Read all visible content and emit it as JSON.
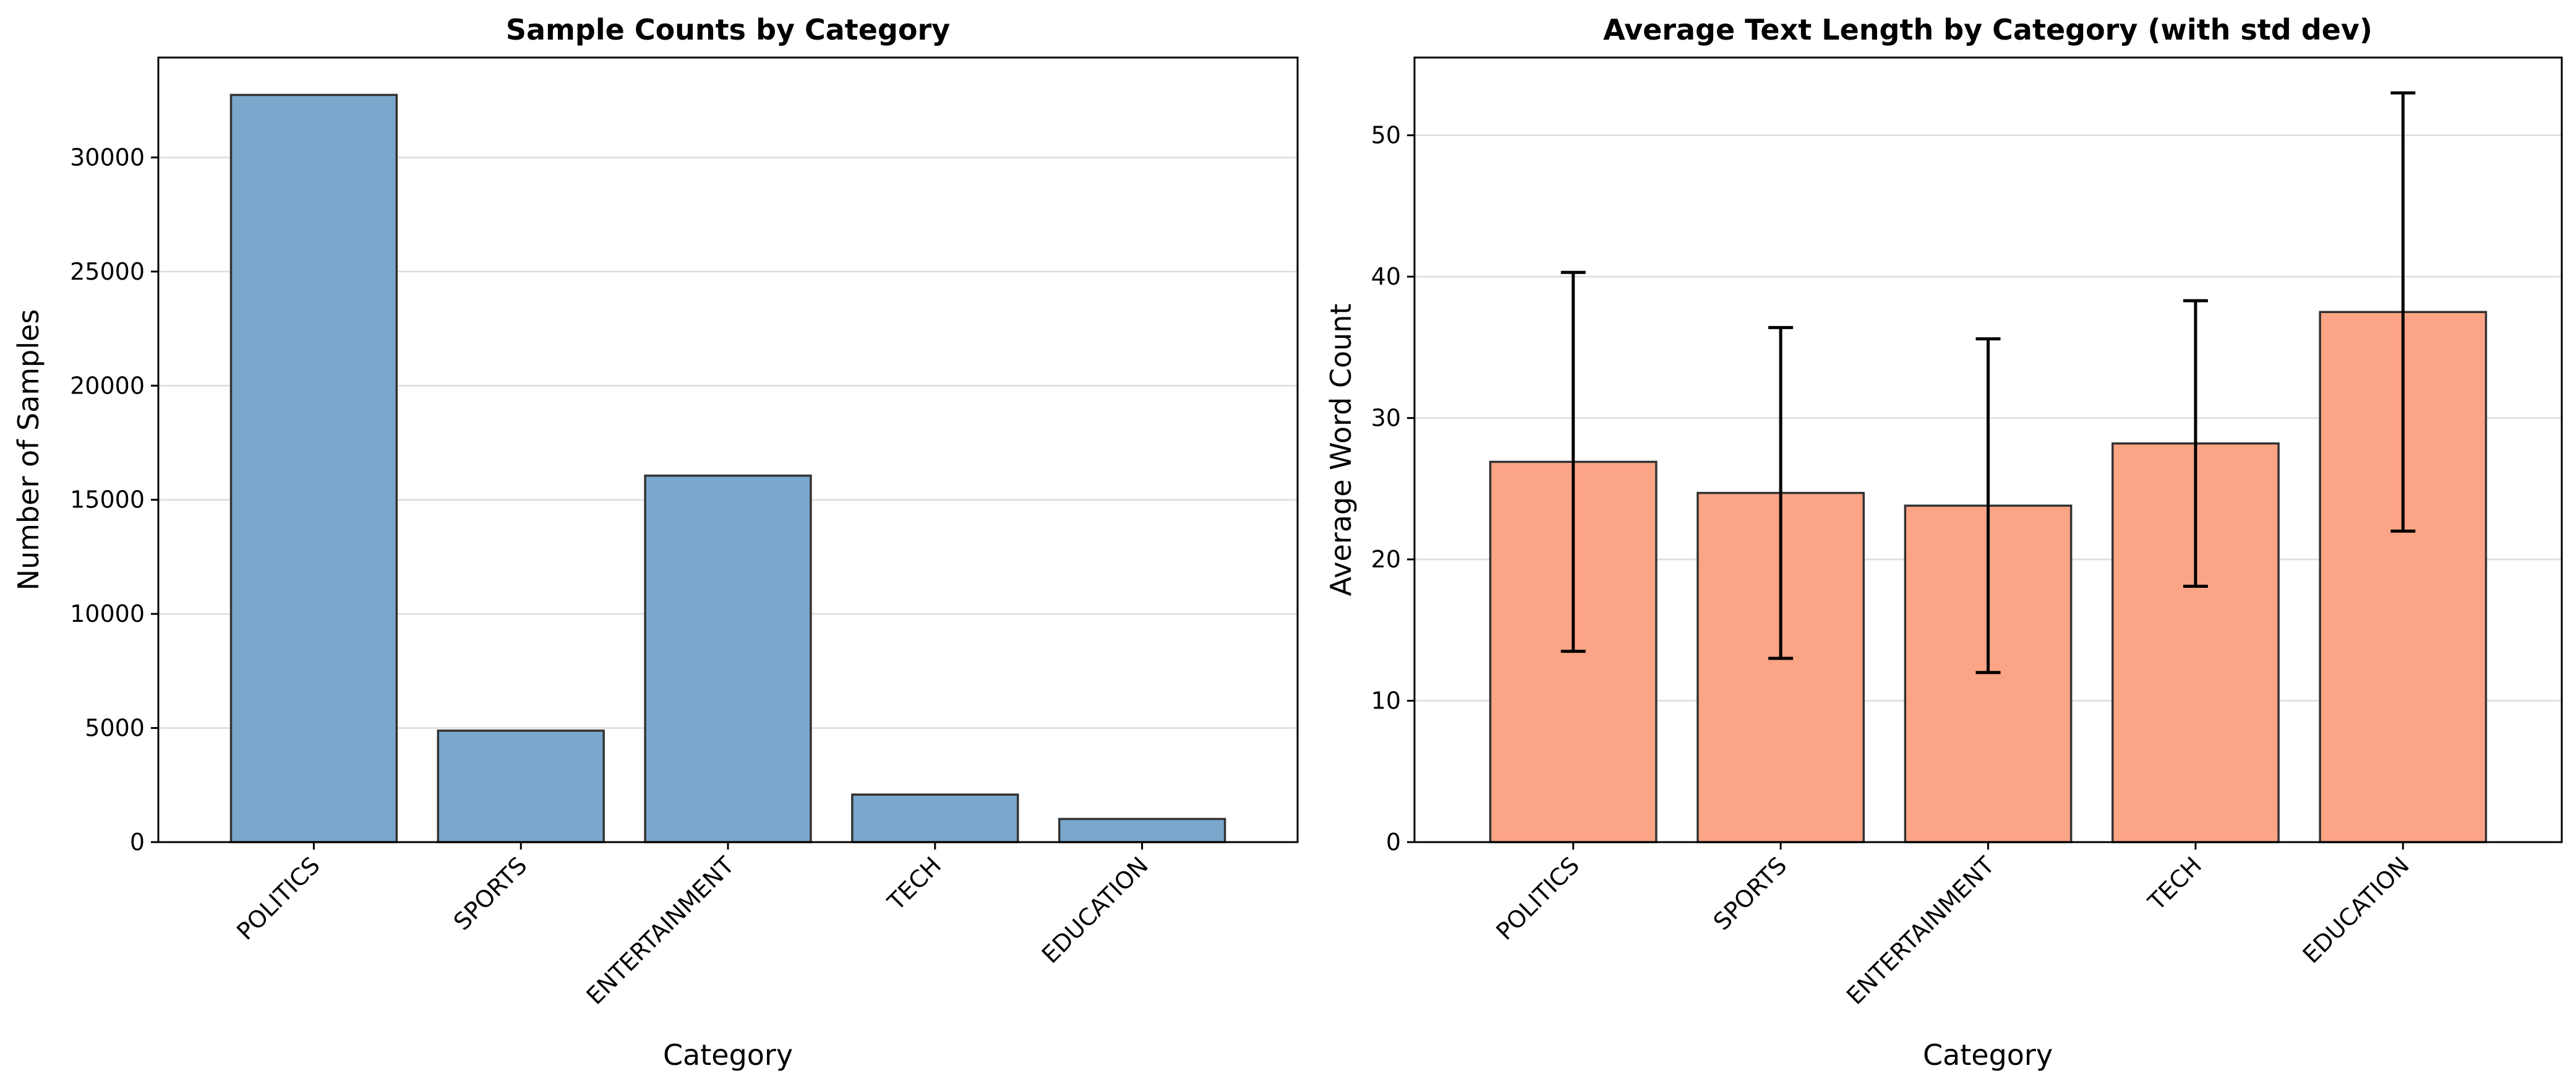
{
  "chart_data": [
    {
      "type": "bar",
      "title": "Sample Counts by Category",
      "xlabel": "Category",
      "ylabel": "Number of Samples",
      "categories": [
        "POLITICS",
        "SPORTS",
        "ENTERTAINMENT",
        "TECH",
        "EDUCATION"
      ],
      "values": [
        32739,
        4884,
        16058,
        2082,
        1014
      ],
      "ylim": [
        0,
        34377
      ],
      "yticks": [
        0,
        5000,
        10000,
        15000,
        20000,
        25000,
        30000
      ],
      "grid": true,
      "bar_color": "#7ba7cc"
    },
    {
      "type": "bar",
      "title": "Average Text Length by Category (with std dev)",
      "xlabel": "Category",
      "ylabel": "Average Word Count",
      "categories": [
        "POLITICS",
        "SPORTS",
        "ENTERTAINMENT",
        "TECH",
        "EDUCATION"
      ],
      "values": [
        26.9,
        24.7,
        23.8,
        28.2,
        37.5
      ],
      "error": [
        13.4,
        11.7,
        11.8,
        10.1,
        15.5
      ],
      "ylim": [
        0,
        55.5
      ],
      "yticks": [
        0,
        10,
        20,
        30,
        40,
        50
      ],
      "grid": true,
      "bar_color": "#fca586"
    }
  ]
}
